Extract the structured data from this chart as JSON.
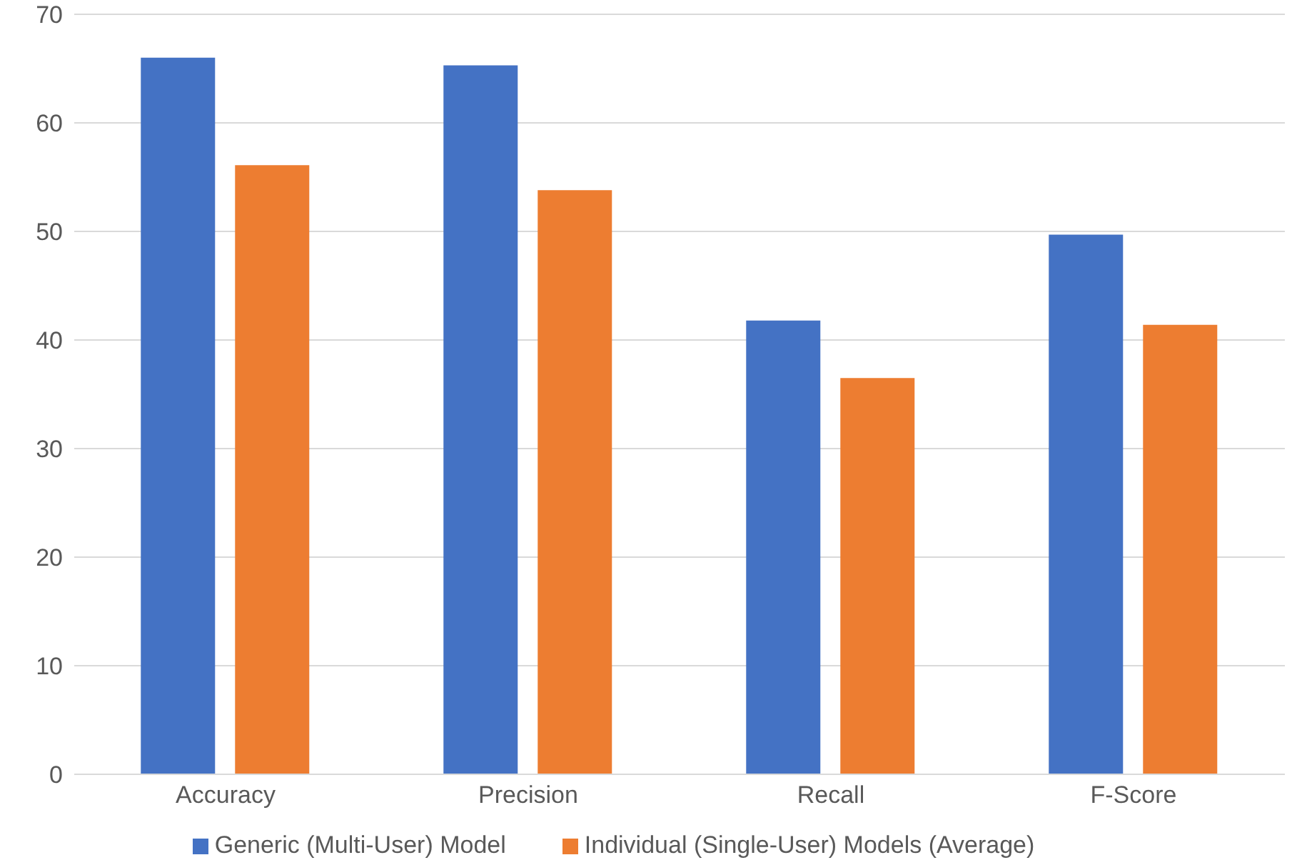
{
  "chart_data": {
    "type": "bar",
    "categories": [
      "Accuracy",
      "Precision",
      "Recall",
      "F-Score"
    ],
    "series": [
      {
        "name": "Generic (Multi-User) Model",
        "color": "#4472c4",
        "values": [
          66.0,
          65.3,
          41.8,
          49.7
        ]
      },
      {
        "name": "Individual (Single-User) Models (Average)",
        "color": "#ed7d31",
        "values": [
          56.1,
          53.8,
          36.5,
          41.4
        ]
      }
    ],
    "ylim": [
      0,
      70
    ],
    "yticks": [
      0,
      10,
      20,
      30,
      40,
      50,
      60,
      70
    ],
    "grid": "y",
    "legend": "bottom"
  }
}
